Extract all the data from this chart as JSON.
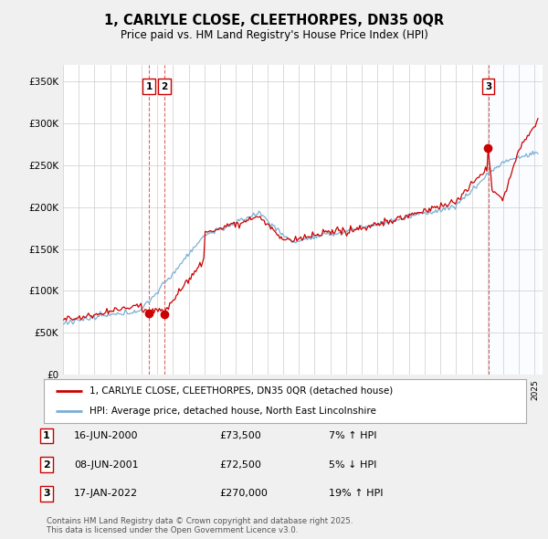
{
  "title": "1, CARLYLE CLOSE, CLEETHORPES, DN35 0QR",
  "subtitle": "Price paid vs. HM Land Registry's House Price Index (HPI)",
  "ylim": [
    0,
    370000
  ],
  "yticks": [
    0,
    50000,
    100000,
    150000,
    200000,
    250000,
    300000,
    350000
  ],
  "ytick_labels": [
    "£0",
    "£50K",
    "£100K",
    "£150K",
    "£200K",
    "£250K",
    "£300K",
    "£350K"
  ],
  "line_color_property": "#cc0000",
  "line_color_hpi": "#7ab0d4",
  "legend_property": "1, CARLYLE CLOSE, CLEETHORPES, DN35 0QR (detached house)",
  "legend_hpi": "HPI: Average price, detached house, North East Lincolnshire",
  "transactions": [
    {
      "num": 1,
      "date": "16-JUN-2000",
      "price": 73500,
      "pct": "7%",
      "dir": "↑"
    },
    {
      "num": 2,
      "date": "08-JUN-2001",
      "price": 72500,
      "pct": "5%",
      "dir": "↓"
    },
    {
      "num": 3,
      "date": "17-JAN-2022",
      "price": 270000,
      "pct": "19%",
      "dir": "↑"
    }
  ],
  "footer": "Contains HM Land Registry data © Crown copyright and database right 2025.\nThis data is licensed under the Open Government Licence v3.0.",
  "bg_color": "#f0f0f0",
  "plot_bg_color": "#ffffff",
  "grid_color": "#cccccc",
  "shade_color": "#ddeeff"
}
